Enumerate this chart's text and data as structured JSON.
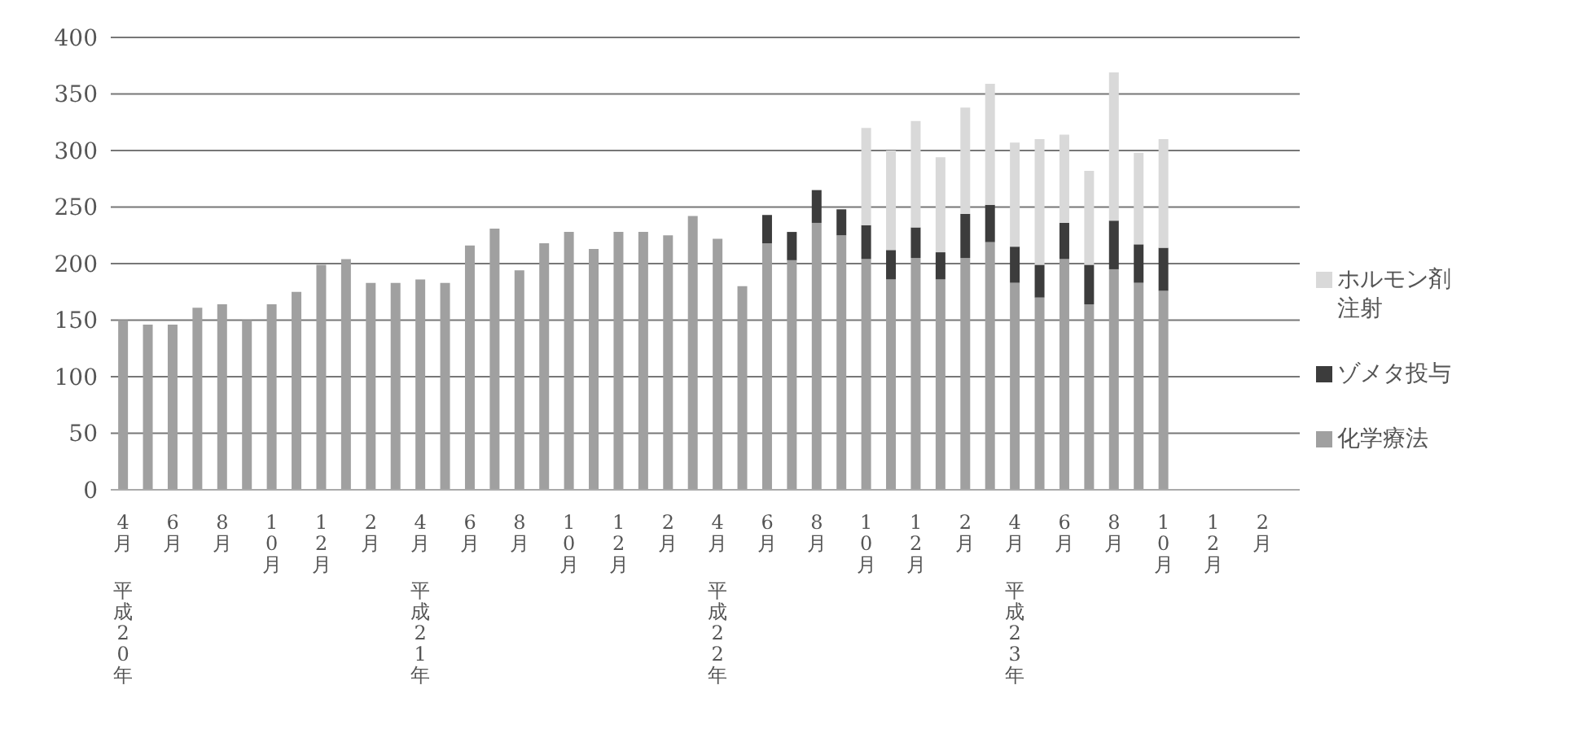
{
  "chart_data": {
    "type": "bar",
    "stacked": true,
    "categories": [
      "4月",
      null,
      "6月",
      null,
      "8月",
      null,
      "10月",
      null,
      "12月",
      null,
      "2月",
      null,
      "4月",
      null,
      "6月",
      null,
      "8月",
      null,
      "10月",
      null,
      "12月",
      null,
      "2月",
      null,
      "4月",
      null,
      "6月",
      null,
      "8月",
      null,
      "10月",
      null,
      "12月",
      null,
      "2月",
      null,
      "4月",
      null,
      "6月",
      null,
      "8月",
      null,
      "10月",
      null,
      "12月",
      null,
      "2月",
      null
    ],
    "series": [
      {
        "name": "化学療法",
        "color": "#a0a0a0",
        "values": [
          150,
          146,
          146,
          161,
          164,
          150,
          164,
          175,
          199,
          204,
          183,
          183,
          186,
          183,
          216,
          231,
          194,
          218,
          228,
          213,
          228,
          228,
          225,
          242,
          222,
          180,
          218,
          203,
          236,
          225,
          204,
          186,
          205,
          186,
          205,
          219,
          183,
          170,
          204,
          164,
          195,
          183,
          176,
          null,
          null,
          null,
          null,
          null
        ]
      },
      {
        "name": "ゾメタ投与",
        "color": "#3c3c3c",
        "values": [
          null,
          null,
          null,
          null,
          null,
          null,
          null,
          null,
          null,
          null,
          null,
          null,
          null,
          null,
          null,
          null,
          null,
          null,
          null,
          null,
          null,
          null,
          null,
          null,
          null,
          null,
          25,
          25,
          29,
          23,
          30,
          26,
          27,
          24,
          39,
          33,
          32,
          29,
          32,
          35,
          43,
          34,
          38,
          null,
          null,
          null,
          null,
          null
        ]
      },
      {
        "name": "ホルモン剤注射",
        "color": "#d9d9d9",
        "values": [
          null,
          null,
          null,
          null,
          null,
          null,
          null,
          null,
          null,
          null,
          null,
          null,
          null,
          null,
          null,
          null,
          null,
          null,
          null,
          null,
          null,
          null,
          null,
          null,
          null,
          null,
          null,
          null,
          null,
          null,
          86,
          88,
          94,
          84,
          94,
          107,
          92,
          111,
          78,
          83,
          131,
          81,
          96,
          null,
          null,
          null,
          null,
          null
        ]
      }
    ],
    "ylim": [
      0,
      400
    ],
    "yticks": [
      0,
      50,
      100,
      150,
      200,
      250,
      300,
      350,
      400
    ],
    "grid": "y",
    "legend": "right",
    "annotations": [
      "平成20年",
      "平成21年",
      "平成22年",
      "平成23年"
    ]
  }
}
